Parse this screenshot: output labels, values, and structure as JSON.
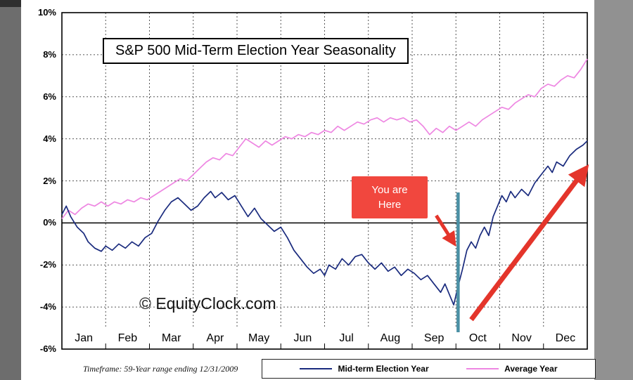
{
  "frame": {
    "background": "#919191",
    "left_strip_color": "#6d6d6d"
  },
  "chart": {
    "title": "S&P 500 Mid-Term Election Year Seasonality",
    "watermark": "© EquityClock.com",
    "footer": "Timeframe: 59-Year range ending 12/31/2009",
    "annotation": {
      "line1": "You are",
      "line2": "Here"
    }
  },
  "legend": {
    "items": [
      {
        "label": "Mid-term Election Year",
        "color": "#1a2b7e"
      },
      {
        "label": "Average Year",
        "color": "#ee87e2"
      }
    ]
  },
  "chart_data": {
    "type": "line",
    "title": "S&P 500 Mid-Term Election Year Seasonality",
    "xlabel": "",
    "ylabel": "",
    "x_axis": {
      "categories": [
        "Jan",
        "Feb",
        "Mar",
        "Apr",
        "May",
        "Jun",
        "Jul",
        "Aug",
        "Sep",
        "Oct",
        "Nov",
        "Dec"
      ]
    },
    "y_axis": {
      "min": -6,
      "max": 10,
      "tick_step": 2,
      "tick_labels": [
        "10%",
        "8%",
        "6%",
        "4%",
        "2%",
        "0%",
        "-2%",
        "-4%",
        "-6%"
      ]
    },
    "grid": {
      "dashed": true,
      "color": "#555555"
    },
    "legend_position": "bottom",
    "series": [
      {
        "name": "Mid-term Election Year",
        "color": "#1a2b7e",
        "points": [
          [
            0,
            0.4
          ],
          [
            0.1,
            0.8
          ],
          [
            0.2,
            0.3
          ],
          [
            0.35,
            -0.2
          ],
          [
            0.5,
            -0.5
          ],
          [
            0.6,
            -0.9
          ],
          [
            0.75,
            -1.2
          ],
          [
            0.9,
            -1.35
          ],
          [
            1.0,
            -1.1
          ],
          [
            1.15,
            -1.3
          ],
          [
            1.3,
            -1.0
          ],
          [
            1.45,
            -1.2
          ],
          [
            1.6,
            -0.9
          ],
          [
            1.75,
            -1.1
          ],
          [
            1.9,
            -0.7
          ],
          [
            2.05,
            -0.5
          ],
          [
            2.2,
            0.1
          ],
          [
            2.35,
            0.6
          ],
          [
            2.5,
            1.0
          ],
          [
            2.65,
            1.2
          ],
          [
            2.8,
            0.9
          ],
          [
            2.95,
            0.6
          ],
          [
            3.1,
            0.8
          ],
          [
            3.25,
            1.2
          ],
          [
            3.4,
            1.5
          ],
          [
            3.5,
            1.2
          ],
          [
            3.65,
            1.45
          ],
          [
            3.8,
            1.1
          ],
          [
            3.95,
            1.3
          ],
          [
            4.1,
            0.8
          ],
          [
            4.25,
            0.3
          ],
          [
            4.4,
            0.7
          ],
          [
            4.55,
            0.2
          ],
          [
            4.7,
            -0.1
          ],
          [
            4.85,
            -0.4
          ],
          [
            5.0,
            -0.2
          ],
          [
            5.15,
            -0.7
          ],
          [
            5.3,
            -1.3
          ],
          [
            5.45,
            -1.7
          ],
          [
            5.6,
            -2.1
          ],
          [
            5.75,
            -2.4
          ],
          [
            5.9,
            -2.2
          ],
          [
            6.0,
            -2.5
          ],
          [
            6.1,
            -2.0
          ],
          [
            6.25,
            -2.2
          ],
          [
            6.4,
            -1.7
          ],
          [
            6.55,
            -2.0
          ],
          [
            6.7,
            -1.6
          ],
          [
            6.85,
            -1.5
          ],
          [
            7.0,
            -1.9
          ],
          [
            7.15,
            -2.2
          ],
          [
            7.3,
            -1.9
          ],
          [
            7.45,
            -2.3
          ],
          [
            7.6,
            -2.1
          ],
          [
            7.75,
            -2.5
          ],
          [
            7.9,
            -2.2
          ],
          [
            8.05,
            -2.4
          ],
          [
            8.2,
            -2.7
          ],
          [
            8.35,
            -2.5
          ],
          [
            8.5,
            -2.9
          ],
          [
            8.65,
            -3.3
          ],
          [
            8.75,
            -2.9
          ],
          [
            8.85,
            -3.4
          ],
          [
            8.95,
            -3.9
          ],
          [
            9.05,
            -3.0
          ],
          [
            9.15,
            -2.2
          ],
          [
            9.25,
            -1.3
          ],
          [
            9.35,
            -0.9
          ],
          [
            9.45,
            -1.2
          ],
          [
            9.55,
            -0.6
          ],
          [
            9.65,
            -0.2
          ],
          [
            9.75,
            -0.6
          ],
          [
            9.85,
            0.3
          ],
          [
            9.95,
            0.8
          ],
          [
            10.05,
            1.3
          ],
          [
            10.15,
            1.0
          ],
          [
            10.25,
            1.5
          ],
          [
            10.35,
            1.2
          ],
          [
            10.5,
            1.6
          ],
          [
            10.65,
            1.3
          ],
          [
            10.8,
            1.9
          ],
          [
            10.95,
            2.3
          ],
          [
            11.1,
            2.7
          ],
          [
            11.2,
            2.4
          ],
          [
            11.3,
            2.9
          ],
          [
            11.45,
            2.7
          ],
          [
            11.6,
            3.2
          ],
          [
            11.75,
            3.5
          ],
          [
            11.9,
            3.7
          ],
          [
            12,
            3.9
          ]
        ]
      },
      {
        "name": "Average Year",
        "color": "#ee87e2",
        "points": [
          [
            0,
            0.2
          ],
          [
            0.15,
            0.6
          ],
          [
            0.3,
            0.4
          ],
          [
            0.45,
            0.7
          ],
          [
            0.6,
            0.9
          ],
          [
            0.75,
            0.8
          ],
          [
            0.9,
            1.0
          ],
          [
            1.05,
            0.8
          ],
          [
            1.2,
            1.0
          ],
          [
            1.35,
            0.9
          ],
          [
            1.5,
            1.1
          ],
          [
            1.65,
            1.0
          ],
          [
            1.8,
            1.2
          ],
          [
            1.95,
            1.1
          ],
          [
            2.1,
            1.3
          ],
          [
            2.25,
            1.5
          ],
          [
            2.4,
            1.7
          ],
          [
            2.55,
            1.9
          ],
          [
            2.7,
            2.1
          ],
          [
            2.85,
            2.0
          ],
          [
            3.0,
            2.3
          ],
          [
            3.15,
            2.6
          ],
          [
            3.3,
            2.9
          ],
          [
            3.45,
            3.1
          ],
          [
            3.6,
            3.0
          ],
          [
            3.75,
            3.3
          ],
          [
            3.9,
            3.2
          ],
          [
            4.05,
            3.6
          ],
          [
            4.2,
            4.0
          ],
          [
            4.35,
            3.8
          ],
          [
            4.5,
            3.6
          ],
          [
            4.65,
            3.9
          ],
          [
            4.8,
            3.7
          ],
          [
            4.95,
            3.9
          ],
          [
            5.1,
            4.1
          ],
          [
            5.25,
            4.0
          ],
          [
            5.4,
            4.2
          ],
          [
            5.55,
            4.1
          ],
          [
            5.7,
            4.3
          ],
          [
            5.85,
            4.2
          ],
          [
            6.0,
            4.4
          ],
          [
            6.15,
            4.3
          ],
          [
            6.3,
            4.6
          ],
          [
            6.45,
            4.4
          ],
          [
            6.6,
            4.6
          ],
          [
            6.75,
            4.8
          ],
          [
            6.9,
            4.7
          ],
          [
            7.05,
            4.9
          ],
          [
            7.2,
            5.0
          ],
          [
            7.35,
            4.8
          ],
          [
            7.5,
            5.0
          ],
          [
            7.65,
            4.9
          ],
          [
            7.8,
            5.0
          ],
          [
            7.95,
            4.8
          ],
          [
            8.1,
            4.9
          ],
          [
            8.25,
            4.6
          ],
          [
            8.4,
            4.2
          ],
          [
            8.55,
            4.5
          ],
          [
            8.7,
            4.3
          ],
          [
            8.85,
            4.6
          ],
          [
            9.0,
            4.4
          ],
          [
            9.15,
            4.6
          ],
          [
            9.3,
            4.8
          ],
          [
            9.45,
            4.6
          ],
          [
            9.6,
            4.9
          ],
          [
            9.75,
            5.1
          ],
          [
            9.9,
            5.3
          ],
          [
            10.05,
            5.5
          ],
          [
            10.2,
            5.4
          ],
          [
            10.35,
            5.7
          ],
          [
            10.5,
            5.9
          ],
          [
            10.65,
            6.1
          ],
          [
            10.8,
            6.0
          ],
          [
            10.95,
            6.4
          ],
          [
            11.1,
            6.6
          ],
          [
            11.25,
            6.5
          ],
          [
            11.4,
            6.8
          ],
          [
            11.55,
            7.0
          ],
          [
            11.7,
            6.9
          ],
          [
            11.85,
            7.3
          ],
          [
            12,
            7.8
          ]
        ]
      }
    ],
    "annotations": {
      "marker_line": {
        "x_month": 9.05,
        "y_from": 1.45,
        "y_to": -5.2,
        "color": "#4a90a4"
      },
      "pointer_arrow": {
        "from": [
          8.55,
          0.35
        ],
        "to": [
          8.95,
          -0.95
        ],
        "color": "#e4352b"
      },
      "trend_arrow": {
        "from": [
          9.35,
          -4.6
        ],
        "to": [
          11.95,
          2.55
        ],
        "color": "#e4352b"
      },
      "you_are_here_box_color": "#f1473e"
    }
  }
}
